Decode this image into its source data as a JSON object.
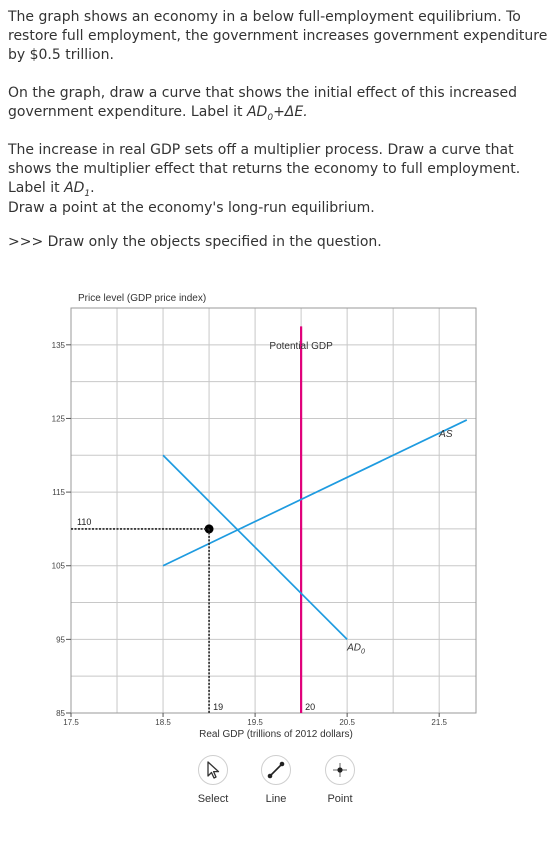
{
  "instructions": {
    "p1": "The graph shows an economy in a below full-employment equilibrium. To restore full employment, the government increases government expenditure by $0.5 trillion.",
    "p2a": "On the graph, draw a curve that shows the initial effect of this increased government expenditure. Label it ",
    "p2_label_main": "AD",
    "p2_label_sub": "0",
    "p2_label_tail": "+ΔE.",
    "p3a": "The increase in real GDP sets off a multiplier process. Draw a curve that shows the multiplier effect that returns the economy to full employment. Label it ",
    "p3_label_main": "AD",
    "p3_label_sub": "1",
    "p3_tail": ".",
    "p4": "Draw a point at the economy's long-run equilibrium.",
    "p5": ">>> Draw only the objects specified in the question."
  },
  "chart_data": {
    "type": "line",
    "ylabel": "Price level (GDP price index)",
    "xlabel": "Real GDP (trillions of 2012 dollars)",
    "xlim": [
      17.5,
      21.9
    ],
    "ylim": [
      85,
      140
    ],
    "x_ticks": [
      17.5,
      18.5,
      19.5,
      20.5,
      21.5
    ],
    "x_tick_labels": [
      "17.5",
      "18.5",
      "19.5",
      "20.5",
      "21.5"
    ],
    "y_ticks": [
      85,
      95,
      105,
      115,
      125,
      135
    ],
    "y_tick_labels": [
      "85",
      "95",
      "105",
      "115",
      "125",
      "135"
    ],
    "grid": true,
    "series": [
      {
        "name": "AS",
        "label_main": "AS",
        "label_sub": "",
        "color": "#1e9be0",
        "x": [
          18.5,
          21.8
        ],
        "y": [
          105,
          124.8
        ],
        "label_at": [
          21.5,
          122.5
        ]
      },
      {
        "name": "AD0",
        "label_main": "AD",
        "label_sub": "0",
        "color": "#1e9be0",
        "x": [
          18.5,
          20.5
        ],
        "y": [
          120,
          95
        ],
        "label_at": [
          20.5,
          93.5
        ]
      }
    ],
    "vertical_line": {
      "name": "Potential GDP",
      "label": "Potential GDP",
      "x": 20,
      "color": "#e0007a",
      "label_at": [
        20,
        135
      ]
    },
    "equilibrium_point": {
      "x": 19,
      "y": 110,
      "x_label": "19",
      "y_label": "110"
    },
    "annotations": [
      {
        "text": "20",
        "x": 20,
        "y": 85
      }
    ]
  },
  "toolbar": {
    "select_label": "Select",
    "line_label": "Line",
    "point_label": "Point"
  }
}
